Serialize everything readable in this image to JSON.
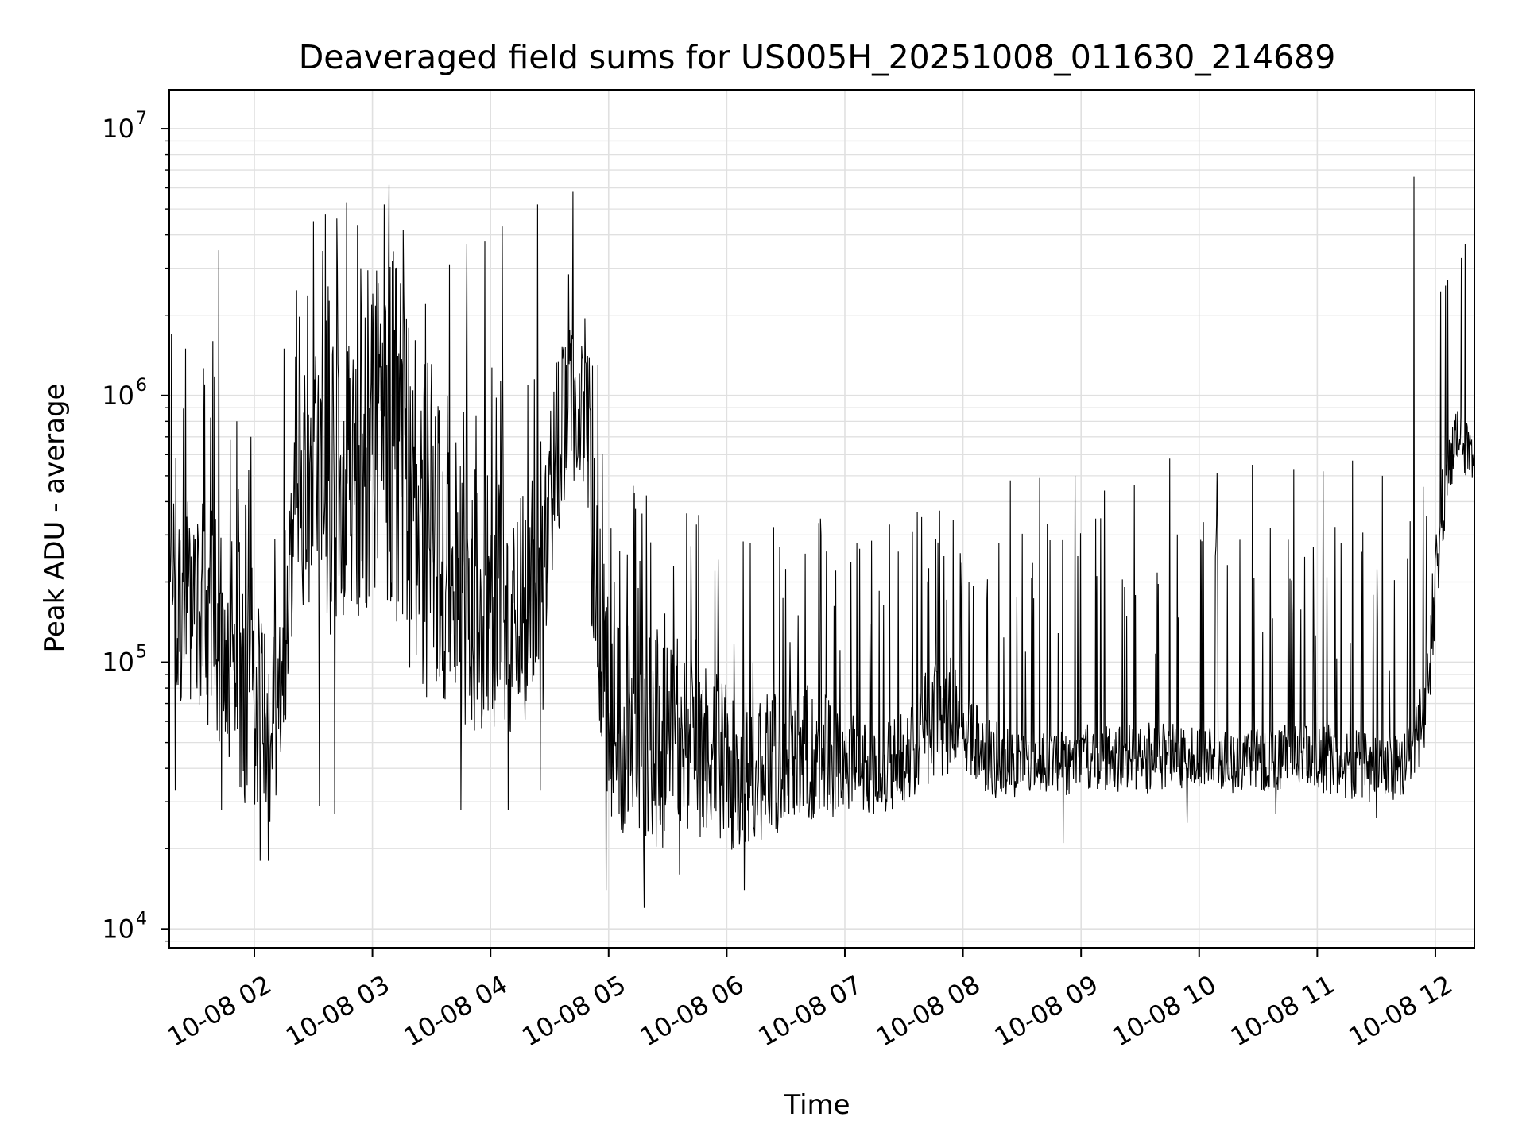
{
  "chart_data": {
    "type": "line",
    "title": "Deaveraged field sums for US005H_20251008_011630_214689",
    "xlabel": "Time",
    "ylabel": "Peak ADU - average",
    "yscale": "log",
    "ylim": [
      8500,
      14000000
    ],
    "xlim_hours": [
      1.28,
      12.33
    ],
    "grid": true,
    "grid_color": "#e0e0e0",
    "line_color": "#000000",
    "x_ticks": [
      {
        "hour": 2,
        "label": "10-08 02"
      },
      {
        "hour": 3,
        "label": "10-08 03"
      },
      {
        "hour": 4,
        "label": "10-08 04"
      },
      {
        "hour": 5,
        "label": "10-08 05"
      },
      {
        "hour": 6,
        "label": "10-08 06"
      },
      {
        "hour": 7,
        "label": "10-08 07"
      },
      {
        "hour": 8,
        "label": "10-08 08"
      },
      {
        "hour": 9,
        "label": "10-08 09"
      },
      {
        "hour": 10,
        "label": "10-08 10"
      },
      {
        "hour": 11,
        "label": "10-08 11"
      },
      {
        "hour": 12,
        "label": "10-08 12"
      }
    ],
    "y_ticks": [
      {
        "value": 10000,
        "base": "10",
        "exp": "4"
      },
      {
        "value": 100000,
        "base": "10",
        "exp": "5"
      },
      {
        "value": 1000000,
        "base": "10",
        "exp": "6"
      },
      {
        "value": 10000000,
        "base": "10",
        "exp": "7"
      }
    ],
    "series": [
      {
        "name": "Peak ADU - average",
        "hours": [
          1.28,
          1.35,
          1.45,
          1.55,
          1.65,
          1.75,
          1.85,
          1.95,
          2.05,
          2.15,
          2.25,
          2.35,
          2.5,
          2.65,
          2.75,
          2.85,
          3.0,
          3.15,
          3.3,
          3.45,
          3.6,
          3.75,
          3.9,
          4.05,
          4.2,
          4.35,
          4.45,
          4.55,
          4.65,
          4.75,
          4.8,
          4.85,
          4.9,
          5.0,
          5.2,
          5.4,
          5.6,
          5.8,
          5.95,
          6.1,
          6.3,
          6.5,
          6.7,
          6.9,
          7.1,
          7.3,
          7.5,
          7.7,
          7.9,
          8.0,
          8.2,
          8.5,
          8.8,
          9.1,
          9.4,
          9.7,
          10.0,
          10.3,
          10.6,
          10.9,
          11.2,
          11.5,
          11.7,
          11.8,
          11.85,
          11.9,
          11.95,
          12.0,
          12.05,
          12.1,
          12.15,
          12.2,
          12.25,
          12.3
        ],
        "values": [
          300000,
          150000,
          200000,
          180000,
          150000,
          130000,
          110000,
          90000,
          70000,
          60000,
          90000,
          400000,
          500000,
          450000,
          550000,
          600000,
          800000,
          900000,
          500000,
          300000,
          250000,
          200000,
          180000,
          200000,
          180000,
          150000,
          200000,
          600000,
          900000,
          1000000,
          800000,
          400000,
          180000,
          70000,
          60000,
          55000,
          50000,
          50000,
          45000,
          40000,
          42000,
          45000,
          48000,
          45000,
          42000,
          40000,
          45000,
          60000,
          65000,
          55000,
          45000,
          42000,
          42000,
          45000,
          44000,
          45000,
          44000,
          43000,
          44000,
          45000,
          43000,
          40000,
          42000,
          45000,
          55000,
          70000,
          110000,
          200000,
          350000,
          500000,
          650000,
          700000,
          650000,
          600000
        ],
        "band_min": [
          80000,
          50000,
          50000,
          50000,
          40000,
          35000,
          25000,
          20000,
          20000,
          20000,
          40000,
          120000,
          100000,
          80000,
          80000,
          100000,
          100000,
          80000,
          60000,
          50000,
          40000,
          40000,
          40000,
          40000,
          40000,
          40000,
          50000,
          200000,
          300000,
          400000,
          200000,
          100000,
          50000,
          18000,
          15000,
          15000,
          17000,
          18000,
          17000,
          16000,
          18000,
          20000,
          22000,
          22000,
          23000,
          24000,
          26000,
          30000,
          32000,
          30000,
          28000,
          29000,
          29000,
          30000,
          29000,
          30000,
          30000,
          30000,
          30000,
          30000,
          28000,
          27000,
          28000,
          30000,
          35000,
          40000,
          60000,
          120000,
          200000,
          350000,
          450000,
          500000,
          450000,
          450000
        ],
        "spikes": [
          {
            "hour": 1.3,
            "value": 1700000
          },
          {
            "hour": 1.42,
            "value": 1500000
          },
          {
            "hour": 1.58,
            "value": 1100000
          },
          {
            "hour": 1.65,
            "value": 1600000
          },
          {
            "hour": 1.7,
            "value": 3500000
          },
          {
            "hour": 1.85,
            "value": 800000
          },
          {
            "hour": 1.97,
            "value": 700000
          },
          {
            "hour": 2.25,
            "value": 1500000
          },
          {
            "hour": 2.35,
            "value": 1400000
          },
          {
            "hour": 2.5,
            "value": 4500000
          },
          {
            "hour": 2.6,
            "value": 4800000
          },
          {
            "hour": 2.7,
            "value": 4600000
          },
          {
            "hour": 2.78,
            "value": 5300000
          },
          {
            "hour": 2.9,
            "value": 3000000
          },
          {
            "hour": 3.1,
            "value": 5200000
          },
          {
            "hour": 3.2,
            "value": 3000000
          },
          {
            "hour": 3.45,
            "value": 2200000
          },
          {
            "hour": 3.65,
            "value": 3100000
          },
          {
            "hour": 3.8,
            "value": 3700000
          },
          {
            "hour": 3.95,
            "value": 3800000
          },
          {
            "hour": 4.1,
            "value": 4300000
          },
          {
            "hour": 4.4,
            "value": 5200000
          },
          {
            "hour": 4.7,
            "value": 5800000
          },
          {
            "hour": 5.05,
            "value": 200000
          },
          {
            "hour": 5.25,
            "value": 190000
          },
          {
            "hour": 5.55,
            "value": 230000
          },
          {
            "hour": 5.9,
            "value": 220000
          },
          {
            "hour": 6.2,
            "value": 280000
          },
          {
            "hour": 6.45,
            "value": 270000
          },
          {
            "hour": 6.8,
            "value": 300000
          },
          {
            "hour": 7.1,
            "value": 280000
          },
          {
            "hour": 7.45,
            "value": 260000
          },
          {
            "hour": 7.65,
            "value": 350000
          },
          {
            "hour": 7.8,
            "value": 370000
          },
          {
            "hour": 8.05,
            "value": 200000
          },
          {
            "hour": 8.4,
            "value": 480000
          },
          {
            "hour": 8.65,
            "value": 490000
          },
          {
            "hour": 8.95,
            "value": 500000
          },
          {
            "hour": 9.2,
            "value": 440000
          },
          {
            "hour": 9.45,
            "value": 460000
          },
          {
            "hour": 9.75,
            "value": 580000
          },
          {
            "hour": 10.15,
            "value": 510000
          },
          {
            "hour": 10.45,
            "value": 550000
          },
          {
            "hour": 10.8,
            "value": 530000
          },
          {
            "hour": 11.05,
            "value": 520000
          },
          {
            "hour": 11.3,
            "value": 570000
          },
          {
            "hour": 11.55,
            "value": 500000
          },
          {
            "hour": 11.82,
            "value": 6600000
          },
          {
            "hour": 12.25,
            "value": 3700000
          }
        ],
        "dips": [
          {
            "hour": 1.33,
            "value": 33000
          },
          {
            "hour": 1.72,
            "value": 28000
          },
          {
            "hour": 1.88,
            "value": 34000
          },
          {
            "hour": 2.05,
            "value": 18000
          },
          {
            "hour": 2.12,
            "value": 18000
          },
          {
            "hour": 2.55,
            "value": 29000
          },
          {
            "hour": 2.68,
            "value": 27000
          },
          {
            "hour": 3.45,
            "value": 30000
          },
          {
            "hour": 3.75,
            "value": 28000
          },
          {
            "hour": 4.15,
            "value": 28000
          },
          {
            "hour": 4.42,
            "value": 33000
          },
          {
            "hour": 4.98,
            "value": 14000
          },
          {
            "hour": 5.3,
            "value": 12000
          },
          {
            "hour": 5.6,
            "value": 16000
          },
          {
            "hour": 6.15,
            "value": 14000
          },
          {
            "hour": 6.45,
            "value": 17000
          },
          {
            "hour": 7.1,
            "value": 20000
          },
          {
            "hour": 8.85,
            "value": 21000
          },
          {
            "hour": 9.9,
            "value": 25000
          },
          {
            "hour": 10.65,
            "value": 27000
          },
          {
            "hour": 11.5,
            "value": 26000
          }
        ]
      }
    ]
  }
}
